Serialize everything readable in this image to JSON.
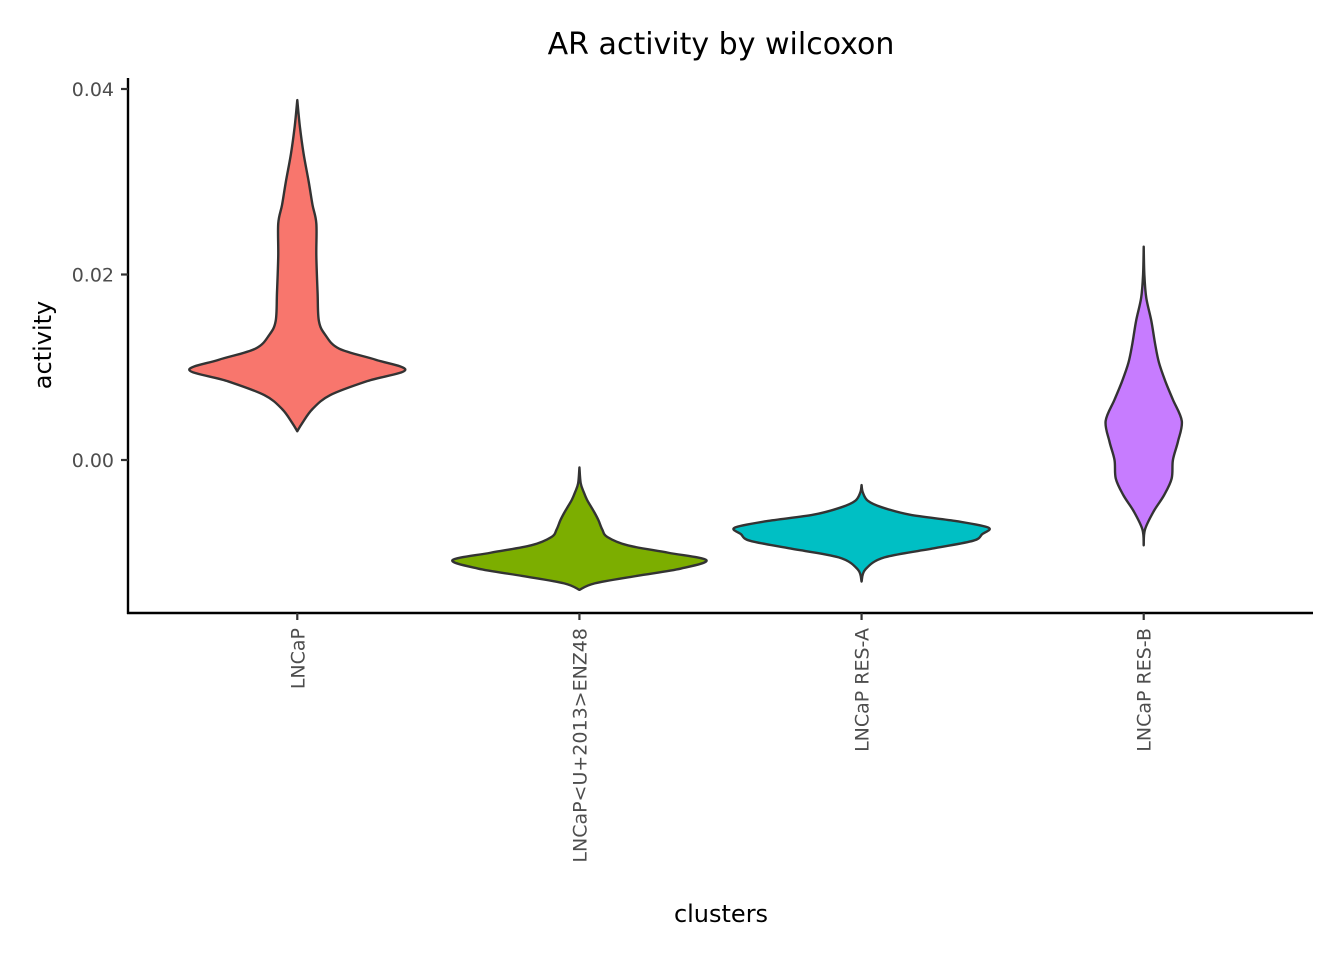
{
  "chart_data": {
    "type": "violin",
    "title": "AR activity by wilcoxon",
    "xlabel": "clusters",
    "ylabel": "activity",
    "ylim": [
      -0.0165,
      0.0415
    ],
    "yticks": [
      0.0,
      0.02,
      0.04
    ],
    "ytick_labels": [
      "0.00",
      "0.02",
      "0.04"
    ],
    "categories": [
      "LNCaP",
      "LNCaP<U+2013>ENZ48",
      "LNCaP RES-A",
      "LNCaP RES-B"
    ],
    "legend": "none",
    "grid": false,
    "series": [
      {
        "category": "LNCaP",
        "color": "#F8766D",
        "min": 0.0031,
        "max": 0.0388,
        "density": [
          [
            0.0031,
            0.0
          ],
          [
            0.004,
            0.04
          ],
          [
            0.0055,
            0.12
          ],
          [
            0.007,
            0.26
          ],
          [
            0.0085,
            0.55
          ],
          [
            0.0097,
            0.85
          ],
          [
            0.0108,
            0.62
          ],
          [
            0.012,
            0.33
          ],
          [
            0.0135,
            0.22
          ],
          [
            0.015,
            0.17
          ],
          [
            0.018,
            0.16
          ],
          [
            0.022,
            0.15
          ],
          [
            0.0255,
            0.15
          ],
          [
            0.0275,
            0.12
          ],
          [
            0.03,
            0.09
          ],
          [
            0.033,
            0.05
          ],
          [
            0.036,
            0.02
          ],
          [
            0.0388,
            0.0
          ]
        ]
      },
      {
        "category": "LNCaP<U+2013>ENZ48",
        "color": "#7CAE00",
        "min": -0.014,
        "max": -0.0008,
        "density": [
          [
            -0.014,
            0.0
          ],
          [
            -0.0133,
            0.12
          ],
          [
            -0.0125,
            0.45
          ],
          [
            -0.0117,
            0.8
          ],
          [
            -0.0108,
            1.0
          ],
          [
            -0.01,
            0.7
          ],
          [
            -0.0092,
            0.38
          ],
          [
            -0.0083,
            0.22
          ],
          [
            -0.0075,
            0.18
          ],
          [
            -0.0065,
            0.15
          ],
          [
            -0.0057,
            0.12
          ],
          [
            -0.005,
            0.09
          ],
          [
            -0.0043,
            0.06
          ],
          [
            -0.0035,
            0.035
          ],
          [
            -0.0025,
            0.01
          ],
          [
            -0.0008,
            0.0
          ]
        ]
      },
      {
        "category": "LNCaP RES-A",
        "color": "#00BFC4",
        "min": -0.0131,
        "max": -0.0027,
        "density": [
          [
            -0.0131,
            0.0
          ],
          [
            -0.0118,
            0.03
          ],
          [
            -0.0105,
            0.18
          ],
          [
            -0.0095,
            0.58
          ],
          [
            -0.0087,
            0.88
          ],
          [
            -0.008,
            0.95
          ],
          [
            -0.0073,
            1.0
          ],
          [
            -0.0066,
            0.75
          ],
          [
            -0.0059,
            0.38
          ],
          [
            -0.0051,
            0.16
          ],
          [
            -0.0044,
            0.05
          ],
          [
            -0.0035,
            0.01
          ],
          [
            -0.0027,
            0.0
          ]
        ]
      },
      {
        "category": "LNCaP RES-B",
        "color": "#C77CFF",
        "min": -0.0092,
        "max": 0.023,
        "density": [
          [
            -0.0092,
            0.0
          ],
          [
            -0.0075,
            0.01
          ],
          [
            -0.0055,
            0.08
          ],
          [
            -0.0038,
            0.16
          ],
          [
            -0.002,
            0.22
          ],
          [
            0.0,
            0.23
          ],
          [
            0.002,
            0.27
          ],
          [
            0.0042,
            0.3
          ],
          [
            0.0065,
            0.23
          ],
          [
            0.0085,
            0.17
          ],
          [
            0.0105,
            0.12
          ],
          [
            0.0125,
            0.09
          ],
          [
            0.015,
            0.06
          ],
          [
            0.0175,
            0.02
          ],
          [
            0.02,
            0.005
          ],
          [
            0.023,
            0.0
          ]
        ]
      }
    ]
  }
}
